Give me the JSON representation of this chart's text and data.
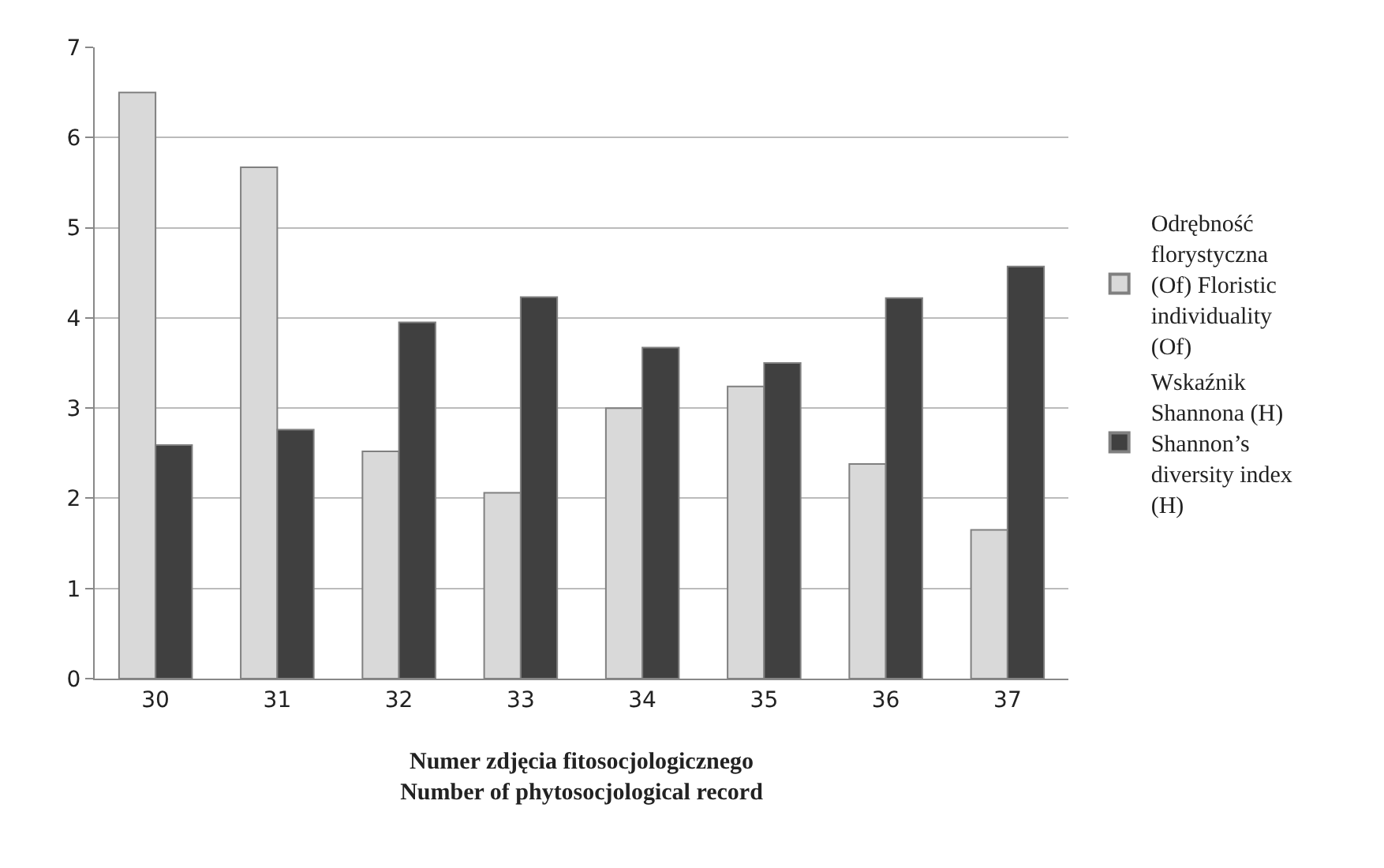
{
  "chart_data": {
    "type": "bar",
    "xlabel": "Numer zdjęcia fitosocjologicznego\nNumber of phytosocjological record",
    "categories": [
      "30",
      "31",
      "32",
      "33",
      "34",
      "35",
      "36",
      "37"
    ],
    "series": [
      {
        "name": "Odrębność florystyczna (Of) Floristic individuality (Of)",
        "color": "#d9d9d9",
        "values": [
          6.5,
          5.67,
          2.52,
          2.06,
          3.0,
          3.24,
          2.38,
          1.65
        ]
      },
      {
        "name": "Wskaźnik Shannona (H) Shannon’s diversity index (H)",
        "color": "#404040",
        "values": [
          2.59,
          2.76,
          3.95,
          4.23,
          3.67,
          3.5,
          4.22,
          4.57
        ]
      }
    ],
    "ylim": [
      0,
      7
    ],
    "yticks": [
      0,
      1,
      2,
      3,
      4,
      5,
      6,
      7
    ],
    "grid": "y",
    "legend": "right"
  }
}
